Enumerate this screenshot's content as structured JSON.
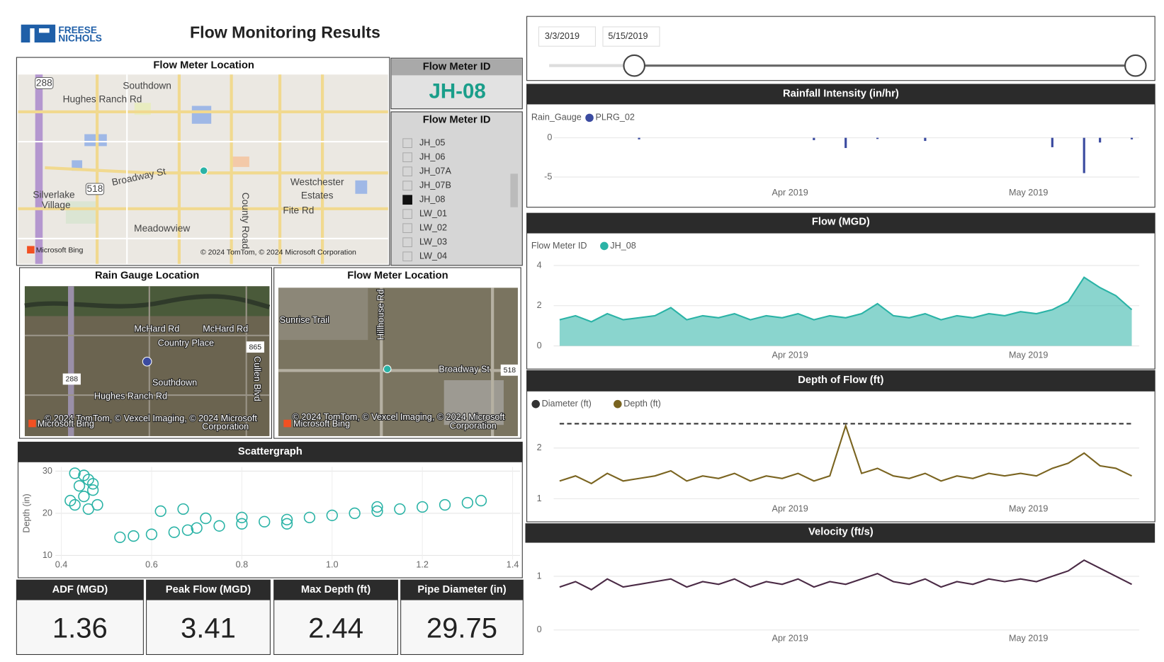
{
  "header": {
    "logo": [
      "FREESE",
      "NICHOLS"
    ],
    "title": "Flow Monitoring Results"
  },
  "date_range": {
    "start": "3/3/2019",
    "end": "5/15/2019"
  },
  "location_map": {
    "title": "Flow Meter Location",
    "labels": [
      "Southdown",
      "Hughes Ranch Rd",
      "Broadway St",
      "Westchester",
      "Estates",
      "Fite Rd",
      "Silverlake",
      "Village",
      "Meadowview",
      "County Road",
      "288",
      "518"
    ],
    "credit": "© 2024 TomTom, © 2024 Microsoft Corporation",
    "brand": "Microsoft Bing"
  },
  "selected_meter": {
    "title": "Flow Meter ID",
    "value": "JH-08"
  },
  "meter_list": {
    "title": "Flow Meter ID",
    "items": [
      "JH_05",
      "JH_06",
      "JH_07A",
      "JH_07B",
      "JH_08",
      "LW_01",
      "LW_02",
      "LW_03",
      "LW_04"
    ],
    "selected_index": 4
  },
  "rain_gauge_map": {
    "title": "Rain Gauge Location",
    "labels": [
      "McHard Rd",
      "McHard Rd",
      "Country Place",
      "865",
      "Southdown",
      "Hughes Ranch Rd",
      "288",
      "Cullen Blvd"
    ],
    "credit": [
      "© 2024 TomTom, © Vexcel Imaging, © 2024 Microsoft",
      "Corporation"
    ],
    "brand": "Microsoft Bing"
  },
  "meter_map": {
    "title": "Flow Meter Location",
    "labels": [
      "Sunrise Trail",
      "Hillhouse Rd",
      "Broadway St",
      "518"
    ],
    "credit": [
      "© 2024 TomTom, © Vexcel Imaging, © 2024 Microsoft",
      "Corporation"
    ],
    "brand": "Microsoft Bing"
  },
  "kpis": [
    {
      "label": "ADF (MGD)",
      "value": 1.36
    },
    {
      "label": "Peak Flow (MGD)",
      "value": 3.41
    },
    {
      "label": "Max Depth (ft)",
      "value": 2.44
    },
    {
      "label": "Pipe Diameter (in)",
      "value": 29.75
    }
  ],
  "chart_data": [
    {
      "type": "bar",
      "title": "Rainfall Intensity (in/hr)",
      "legend_title": "Rain_Gauge",
      "series": [
        {
          "name": "PLRG_02",
          "color": "#3b4ba0",
          "values": [
            0,
            0,
            0,
            0,
            0,
            -0.2,
            0,
            0,
            0,
            0,
            0,
            0,
            0,
            0,
            0,
            0,
            -0.3,
            0,
            -1.3,
            0,
            -0.15,
            0,
            0,
            -0.4,
            0,
            0,
            0,
            0,
            0,
            0,
            0,
            -1.2,
            0,
            -4.5,
            -0.6,
            0,
            -0.2
          ]
        }
      ],
      "xlim": [
        0,
        36
      ],
      "xticks": [
        {
          "value": 14.5,
          "label": "Apr 2019"
        },
        {
          "value": 29.5,
          "label": "May 2019"
        }
      ],
      "ylim": [
        -6,
        1.6
      ],
      "yticks": [
        0,
        -5
      ],
      "grid": true
    },
    {
      "type": "area",
      "title": "Flow (MGD)",
      "legend_title": "Flow Meter ID",
      "series": [
        {
          "name": "JH_08",
          "color": "#2ab3a6",
          "values": [
            1.3,
            1.5,
            1.2,
            1.6,
            1.3,
            1.4,
            1.5,
            1.9,
            1.3,
            1.5,
            1.4,
            1.6,
            1.3,
            1.5,
            1.4,
            1.6,
            1.3,
            1.5,
            1.4,
            1.6,
            2.1,
            1.5,
            1.4,
            1.6,
            1.3,
            1.5,
            1.4,
            1.6,
            1.5,
            1.7,
            1.6,
            1.8,
            2.2,
            3.41,
            2.9,
            2.5,
            1.8
          ]
        }
      ],
      "xlim": [
        0,
        36
      ],
      "xticks": [
        {
          "value": 14.5,
          "label": "Apr 2019"
        },
        {
          "value": 29.5,
          "label": "May 2019"
        }
      ],
      "ylim": [
        0,
        4.3
      ],
      "yticks": [
        0,
        2,
        4
      ],
      "grid": true
    },
    {
      "type": "line",
      "title": "Depth of Flow (ft)",
      "series": [
        {
          "name": "Diameter (ft)",
          "color": "#333333",
          "dashed": true,
          "values": [
            2.48,
            2.48,
            2.48,
            2.48,
            2.48,
            2.48,
            2.48,
            2.48,
            2.48,
            2.48,
            2.48,
            2.48,
            2.48,
            2.48,
            2.48,
            2.48,
            2.48,
            2.48,
            2.48,
            2.48,
            2.48,
            2.48,
            2.48,
            2.48,
            2.48,
            2.48,
            2.48,
            2.48,
            2.48,
            2.48,
            2.48,
            2.48,
            2.48,
            2.48,
            2.48,
            2.48,
            2.48
          ]
        },
        {
          "name": "Depth (ft)",
          "color": "#7a6420",
          "values": [
            1.35,
            1.45,
            1.3,
            1.5,
            1.35,
            1.4,
            1.45,
            1.55,
            1.35,
            1.45,
            1.4,
            1.5,
            1.35,
            1.45,
            1.4,
            1.5,
            1.35,
            1.45,
            2.44,
            1.5,
            1.6,
            1.45,
            1.4,
            1.5,
            1.35,
            1.45,
            1.4,
            1.5,
            1.45,
            1.5,
            1.45,
            1.6,
            1.7,
            1.9,
            1.65,
            1.6,
            1.45
          ]
        }
      ],
      "xlim": [
        0,
        36
      ],
      "xticks": [
        {
          "value": 14.5,
          "label": "Apr 2019"
        },
        {
          "value": 29.5,
          "label": "May 2019"
        }
      ],
      "ylim": [
        0.7,
        2.6
      ],
      "yticks": [
        1,
        2
      ],
      "grid": true
    },
    {
      "type": "line",
      "title": "Velocity (ft/s)",
      "color": "#4a2a45",
      "values": [
        0.8,
        0.9,
        0.75,
        0.95,
        0.8,
        0.85,
        0.9,
        0.95,
        0.8,
        0.9,
        0.85,
        0.95,
        0.8,
        0.9,
        0.85,
        0.95,
        0.8,
        0.9,
        0.85,
        0.95,
        1.05,
        0.9,
        0.85,
        0.95,
        0.8,
        0.9,
        0.85,
        0.95,
        0.9,
        0.95,
        0.9,
        1.0,
        1.1,
        1.3,
        1.15,
        1.0,
        0.85
      ],
      "xlim": [
        0,
        36
      ],
      "xticks": [
        {
          "value": 14.5,
          "label": "Apr 2019"
        },
        {
          "value": 29.5,
          "label": "May 2019"
        }
      ],
      "ylim": [
        0,
        1.4
      ],
      "yticks": [
        0,
        1
      ],
      "grid": true
    },
    {
      "type": "scatter",
      "title": "Scattergraph",
      "y_label": "Depth (in)",
      "color": "#2ab3a6",
      "x": [
        0.43,
        0.45,
        0.46,
        0.47,
        0.44,
        0.47,
        0.42,
        0.43,
        0.45,
        0.48,
        0.46,
        0.53,
        0.56,
        0.6,
        0.65,
        0.68,
        0.7,
        0.75,
        0.8,
        0.85,
        0.9,
        0.95,
        1.0,
        1.05,
        1.1,
        1.15,
        1.2,
        1.25,
        1.3,
        1.33,
        0.62,
        0.67,
        0.8,
        0.72,
        0.9,
        1.1
      ],
      "values": [
        29.5,
        29,
        28,
        27,
        26.5,
        25.5,
        23,
        22,
        24,
        22,
        21,
        14.3,
        14.6,
        15,
        15.5,
        16,
        16.5,
        17,
        17.5,
        18,
        18.5,
        19,
        19.5,
        20,
        20.5,
        21,
        21.5,
        22,
        22.5,
        23,
        20.5,
        21,
        19,
        18.8,
        17.5,
        21.5
      ],
      "xlim": [
        0.4,
        1.4
      ],
      "xticks": [
        0.4,
        0.6,
        0.8,
        {
          "value": 1,
          "label": "1.0"
        },
        1.2,
        1.4
      ],
      "ylim": [
        9,
        31
      ],
      "yticks": [
        10,
        20,
        30
      ],
      "grid": true
    }
  ]
}
